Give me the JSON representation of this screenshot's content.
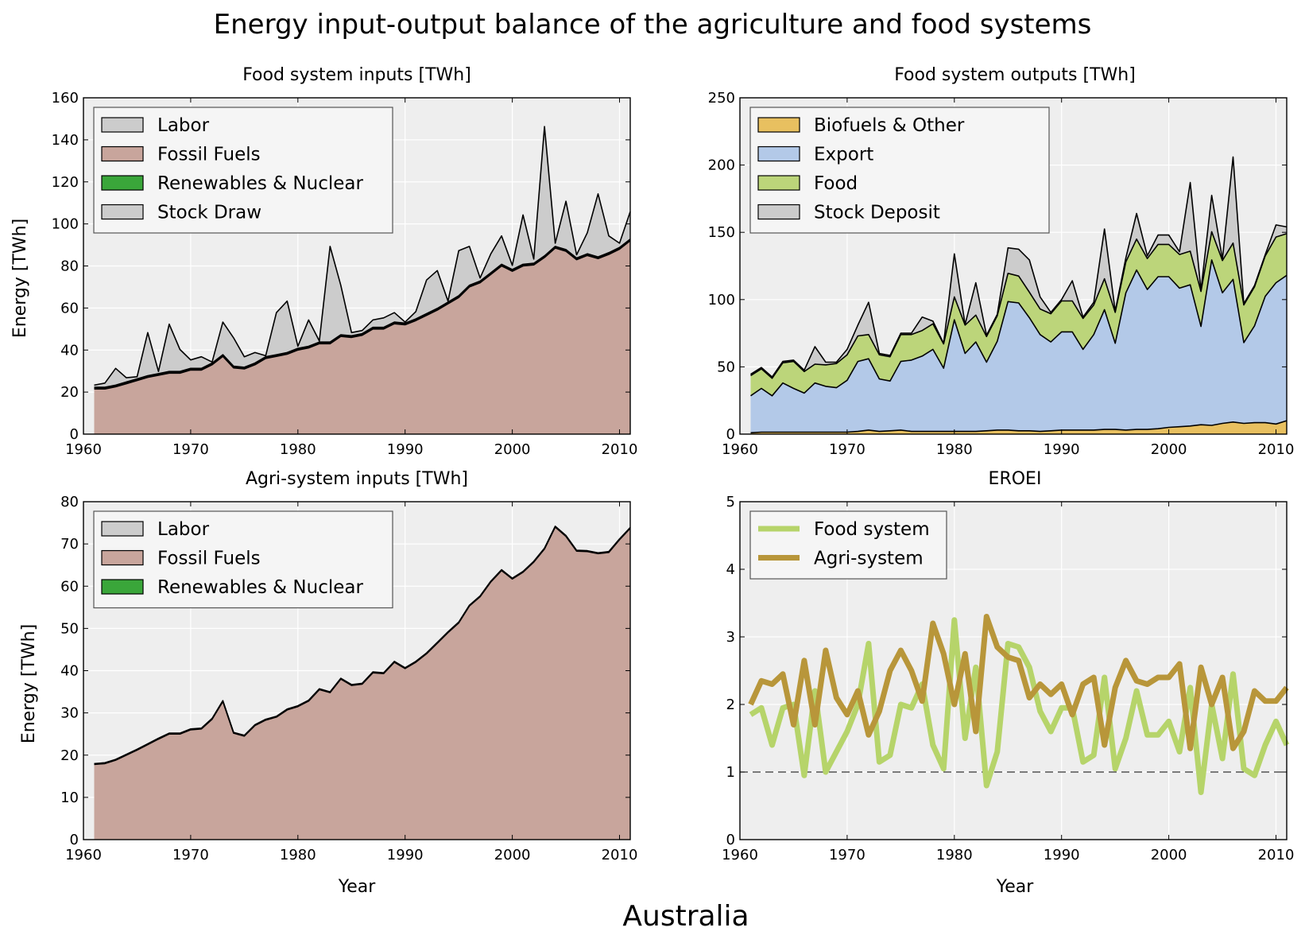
{
  "figure": {
    "title": "Energy input-output balance of the agriculture and food systems",
    "country": "Australia",
    "colors": {
      "labor": "#cccccc",
      "fossil": "#c8a59c",
      "renewables": "#3aa63a",
      "stock": "#cccccc",
      "biofuels": "#e8c060",
      "export": "#b3c9e8",
      "food": "#bcd57a",
      "food_line": "#b6d46a",
      "agri_line": "#b8963a",
      "plot_bg": "#eeeeee"
    }
  },
  "chart_data": [
    {
      "id": "food_inputs",
      "type": "area",
      "title": "Food system inputs [TWh]",
      "xlabel": "",
      "ylabel": "Energy [TWh]",
      "xlim": [
        1960,
        2011
      ],
      "ylim": [
        0,
        160
      ],
      "xticks": [
        "1960",
        "1970",
        "1980",
        "1990",
        "2000",
        "2010"
      ],
      "yticks": [
        "0",
        "20",
        "40",
        "60",
        "80",
        "100",
        "120",
        "140",
        "160"
      ],
      "legend": [
        "Labor",
        "Fossil Fuels",
        "Renewables & Nuclear",
        "Stock Draw"
      ],
      "legend_position": "top-left",
      "grid": true,
      "x": [
        1961,
        1962,
        1963,
        1964,
        1965,
        1966,
        1967,
        1968,
        1969,
        1970,
        1971,
        1972,
        1973,
        1974,
        1975,
        1976,
        1977,
        1978,
        1979,
        1980,
        1981,
        1982,
        1983,
        1984,
        1985,
        1986,
        1987,
        1988,
        1989,
        1990,
        1991,
        1992,
        1993,
        1994,
        1995,
        1996,
        1997,
        1998,
        1999,
        2000,
        2001,
        2002,
        2003,
        2004,
        2005,
        2006,
        2007,
        2008,
        2009,
        2010,
        2011
      ],
      "series": [
        {
          "name": "Fossil Fuels",
          "values": [
            21.5,
            21.5,
            22.5,
            24,
            25.5,
            27,
            28,
            29,
            29,
            30.5,
            30.5,
            33,
            37,
            31.5,
            31,
            33,
            36,
            37,
            38,
            40,
            41,
            43,
            43,
            46.5,
            46,
            47,
            50,
            50,
            52.5,
            52,
            54,
            56.5,
            59,
            62,
            65,
            70,
            72,
            76,
            80,
            77.5,
            80,
            80.5,
            84,
            88.5,
            87,
            83,
            85,
            83.5,
            85.5,
            88,
            92
          ]
        },
        {
          "name": "Renewables & Nuclear",
          "values": [
            0.5,
            0.5,
            0.5,
            0.5,
            0.5,
            0.5,
            0.5,
            0.5,
            0.5,
            0.5,
            0.5,
            0.5,
            0.5,
            0.5,
            0.5,
            0.5,
            0.5,
            0.5,
            0.5,
            0.5,
            0.5,
            0.5,
            0.5,
            0.5,
            0.5,
            0.5,
            0.5,
            0.5,
            0.5,
            0.5,
            0.5,
            0.5,
            0.5,
            0.5,
            0.5,
            0.5,
            0.5,
            0.5,
            0.5,
            0.5,
            0.5,
            0.5,
            0.5,
            0.5,
            0.5,
            0.5,
            0.5,
            0.5,
            0.5,
            0.5,
            0.5
          ]
        },
        {
          "name": "Labor",
          "values": [
            0.3,
            0.3,
            0.3,
            0.3,
            0.3,
            0.3,
            0.3,
            0.3,
            0.3,
            0.3,
            0.3,
            0.3,
            0.3,
            0.3,
            0.3,
            0.3,
            0.3,
            0.3,
            0.3,
            0.3,
            0.3,
            0.3,
            0.3,
            0.3,
            0.3,
            0.3,
            0.3,
            0.3,
            0.3,
            0.3,
            0.3,
            0.3,
            0.3,
            0.3,
            0.3,
            0.3,
            0.3,
            0.3,
            0.3,
            0.3,
            0.3,
            0.3,
            0.3,
            0.3,
            0.3,
            0.3,
            0.3,
            0.3,
            0.3,
            0.3,
            0.3
          ]
        },
        {
          "name": "Stock Draw",
          "values": [
            1,
            2,
            8,
            2,
            1,
            20.5,
            1,
            22.5,
            10.5,
            4,
            5.5,
            0.5,
            15.5,
            13.5,
            5,
            5,
            0.5,
            20,
            24.5,
            1,
            12.5,
            0.5,
            45.5,
            23.5,
            1.5,
            1.5,
            3.5,
            4.5,
            4.5,
            0.5,
            3.5,
            16,
            18,
            0.5,
            21.5,
            18.5,
            1.5,
            9,
            13.5,
            2,
            23.5,
            2,
            61.5,
            1.5,
            23,
            1.5,
            10,
            30,
            8,
            2,
            13
          ]
        }
      ]
    },
    {
      "id": "food_outputs",
      "type": "area",
      "title": "Food system outputs [TWh]",
      "xlabel": "",
      "ylabel": "",
      "xlim": [
        1960,
        2011
      ],
      "ylim": [
        0,
        250
      ],
      "xticks": [
        "1960",
        "1970",
        "1980",
        "1990",
        "2000",
        "2010"
      ],
      "yticks": [
        "0",
        "50",
        "100",
        "150",
        "200",
        "250"
      ],
      "legend": [
        "Biofuels & Other",
        "Export",
        "Food",
        "Stock Deposit"
      ],
      "legend_position": "top-left",
      "grid": true,
      "x": [
        1961,
        1962,
        1963,
        1964,
        1965,
        1966,
        1967,
        1968,
        1969,
        1970,
        1971,
        1972,
        1973,
        1974,
        1975,
        1976,
        1977,
        1978,
        1979,
        1980,
        1981,
        1982,
        1983,
        1984,
        1985,
        1986,
        1987,
        1988,
        1989,
        1990,
        1991,
        1992,
        1993,
        1994,
        1995,
        1996,
        1997,
        1998,
        1999,
        2000,
        2001,
        2002,
        2003,
        2004,
        2005,
        2006,
        2007,
        2008,
        2009,
        2010,
        2011
      ],
      "series": [
        {
          "name": "Biofuels & Other",
          "values": [
            1,
            1.5,
            1.5,
            1.5,
            1.5,
            1.5,
            1.5,
            1.5,
            1.5,
            1.5,
            2,
            3,
            2,
            2.5,
            3,
            2,
            2,
            2,
            2,
            2,
            2,
            2,
            2.5,
            3,
            3,
            2.5,
            2.5,
            2,
            2.5,
            3,
            3,
            3,
            3,
            3.5,
            3.5,
            3,
            3.5,
            3.5,
            4,
            5,
            5.5,
            6,
            7,
            6.5,
            8,
            9,
            8,
            8.5,
            8.5,
            7.5,
            10
          ]
        },
        {
          "name": "Export",
          "values": [
            27.5,
            32.5,
            27,
            36.5,
            32.5,
            29,
            36.5,
            34,
            33,
            38.5,
            52,
            53,
            39,
            37,
            51,
            53,
            56,
            61,
            47,
            83,
            58,
            66.5,
            51,
            66,
            95.5,
            95,
            84,
            72,
            66,
            73,
            73,
            60,
            71,
            89,
            64,
            102,
            118.5,
            104,
            113,
            112,
            103,
            105,
            73,
            123,
            97,
            106,
            60,
            72,
            94,
            105,
            108
          ]
        },
        {
          "name": "Food",
          "values": [
            15,
            14.5,
            13,
            15,
            20,
            16,
            14,
            16,
            18,
            19,
            19,
            18,
            18,
            18,
            20,
            19,
            19,
            19,
            18,
            17,
            21,
            20,
            19,
            19,
            21,
            20,
            19,
            19,
            21,
            23,
            23,
            23,
            22,
            23,
            23,
            23,
            23,
            23,
            24,
            24,
            25,
            25,
            26,
            21,
            24,
            27,
            28,
            29,
            30,
            34,
            31
          ]
        },
        {
          "name": "Stock Deposit",
          "values": [
            1,
            1,
            1,
            1,
            1,
            1,
            13,
            2,
            1,
            4,
            8,
            24,
            1,
            1,
            1,
            1,
            10,
            2,
            0.5,
            32,
            0.5,
            24,
            1,
            1,
            19,
            20,
            24,
            9,
            1,
            1,
            15,
            1,
            2,
            37,
            1,
            3,
            19,
            2,
            7,
            7,
            2,
            51,
            1,
            27,
            1,
            64,
            1,
            1,
            1,
            9,
            5
          ]
        }
      ]
    },
    {
      "id": "agri_inputs",
      "type": "area",
      "title": "Agri-system inputs [TWh]",
      "xlabel": "Year",
      "ylabel": "Energy [TWh]",
      "xlim": [
        1960,
        2011
      ],
      "ylim": [
        0,
        80
      ],
      "xticks": [
        "1960",
        "1970",
        "1980",
        "1990",
        "2000",
        "2010"
      ],
      "yticks": [
        "0",
        "10",
        "20",
        "30",
        "40",
        "50",
        "60",
        "70",
        "80"
      ],
      "legend": [
        "Labor",
        "Fossil Fuels",
        "Renewables & Nuclear"
      ],
      "legend_position": "top-left",
      "grid": true,
      "x": [
        1961,
        1962,
        1963,
        1964,
        1965,
        1966,
        1967,
        1968,
        1969,
        1970,
        1971,
        1972,
        1973,
        1974,
        1975,
        1976,
        1977,
        1978,
        1979,
        1980,
        1981,
        1982,
        1983,
        1984,
        1985,
        1986,
        1987,
        1988,
        1989,
        1990,
        1991,
        1992,
        1993,
        1994,
        1995,
        1996,
        1997,
        1998,
        1999,
        2000,
        2001,
        2002,
        2003,
        2004,
        2005,
        2006,
        2007,
        2008,
        2009,
        2010,
        2011
      ],
      "series": [
        {
          "name": "Fossil Fuels",
          "values": [
            17.8,
            18,
            18.8,
            20,
            21.2,
            22.5,
            23.8,
            25,
            25,
            26,
            26.2,
            28.5,
            32.7,
            25.2,
            24.5,
            27,
            28.3,
            29,
            30.7,
            31.5,
            32.8,
            35.5,
            34.8,
            38,
            36.5,
            36.8,
            39.5,
            39.3,
            42,
            40.5,
            42,
            44,
            46.5,
            49,
            51.3,
            55.3,
            57.5,
            61,
            63.7,
            61.7,
            63.3,
            65.7,
            68.8,
            74,
            71.8,
            68.3,
            68.2,
            67.7,
            68,
            71,
            73.7
          ]
        },
        {
          "name": "Renewables & Nuclear",
          "values": [
            0.1,
            0.1,
            0.1,
            0.1,
            0.1,
            0.1,
            0.1,
            0.1,
            0.1,
            0.1,
            0.1,
            0.1,
            0.1,
            0.1,
            0.1,
            0.1,
            0.1,
            0.1,
            0.1,
            0.1,
            0.1,
            0.1,
            0.1,
            0.1,
            0.1,
            0.1,
            0.1,
            0.1,
            0.1,
            0.1,
            0.1,
            0.1,
            0.1,
            0.1,
            0.1,
            0.1,
            0.1,
            0.1,
            0.1,
            0.1,
            0.1,
            0.1,
            0.1,
            0.1,
            0.1,
            0.1,
            0.1,
            0.1,
            0.1,
            0.1,
            0.1
          ]
        },
        {
          "name": "Labor",
          "values": [
            0.1,
            0.1,
            0.1,
            0.1,
            0.1,
            0.1,
            0.1,
            0.1,
            0.1,
            0.1,
            0.1,
            0.1,
            0.1,
            0.1,
            0.1,
            0.1,
            0.1,
            0.1,
            0.1,
            0.1,
            0.1,
            0.1,
            0.1,
            0.1,
            0.1,
            0.1,
            0.1,
            0.1,
            0.1,
            0.1,
            0.1,
            0.1,
            0.1,
            0.1,
            0.1,
            0.1,
            0.1,
            0.1,
            0.1,
            0.1,
            0.1,
            0.1,
            0.1,
            0.1,
            0.1,
            0.1,
            0.1,
            0.1,
            0.1,
            0.1,
            0.1
          ]
        }
      ]
    },
    {
      "id": "eroei",
      "type": "line",
      "title": "EROEI",
      "xlabel": "Year",
      "ylabel": "",
      "xlim": [
        1960,
        2011
      ],
      "ylim": [
        0,
        5
      ],
      "xticks": [
        "1960",
        "1970",
        "1980",
        "1990",
        "2000",
        "2010"
      ],
      "yticks": [
        "0",
        "1",
        "2",
        "3",
        "4",
        "5"
      ],
      "legend": [
        "Food system",
        "Agri-system"
      ],
      "legend_position": "top-left",
      "grid": true,
      "reference_line": 1,
      "x": [
        1961,
        1962,
        1963,
        1964,
        1965,
        1966,
        1967,
        1968,
        1969,
        1970,
        1971,
        1972,
        1973,
        1974,
        1975,
        1976,
        1977,
        1978,
        1979,
        1980,
        1981,
        1982,
        1983,
        1984,
        1985,
        1986,
        1987,
        1988,
        1989,
        1990,
        1991,
        1992,
        1993,
        1994,
        1995,
        1996,
        1997,
        1998,
        1999,
        2000,
        2001,
        2002,
        2003,
        2004,
        2005,
        2006,
        2007,
        2008,
        2009,
        2010,
        2011
      ],
      "series": [
        {
          "name": "Food system",
          "values": [
            1.85,
            1.95,
            1.4,
            1.95,
            2,
            0.95,
            2.2,
            1,
            1.3,
            1.6,
            2,
            2.9,
            1.15,
            1.25,
            2,
            1.95,
            2.3,
            1.4,
            1.05,
            3.25,
            1.5,
            2.55,
            0.8,
            1.3,
            2.9,
            2.85,
            2.55,
            1.9,
            1.6,
            1.95,
            1.95,
            1.15,
            1.25,
            2.4,
            1.05,
            1.5,
            2.2,
            1.55,
            1.55,
            1.75,
            1.3,
            2.25,
            0.7,
            2,
            1.2,
            2.45,
            1.05,
            0.95,
            1.4,
            1.75,
            1.4
          ]
        },
        {
          "name": "Agri-system",
          "values": [
            2,
            2.35,
            2.3,
            2.45,
            1.7,
            2.65,
            1.7,
            2.8,
            2.1,
            1.85,
            2.2,
            1.55,
            1.9,
            2.5,
            2.8,
            2.5,
            2.05,
            3.2,
            2.75,
            2,
            2.75,
            1.6,
            3.3,
            2.85,
            2.7,
            2.65,
            2.1,
            2.3,
            2.15,
            2.3,
            1.85,
            2.3,
            2.4,
            1.4,
            2.25,
            2.65,
            2.35,
            2.3,
            2.4,
            2.4,
            2.6,
            1.35,
            2.55,
            2,
            2.4,
            1.35,
            1.6,
            2.2,
            2.05,
            2.05,
            2.25
          ]
        }
      ]
    }
  ]
}
